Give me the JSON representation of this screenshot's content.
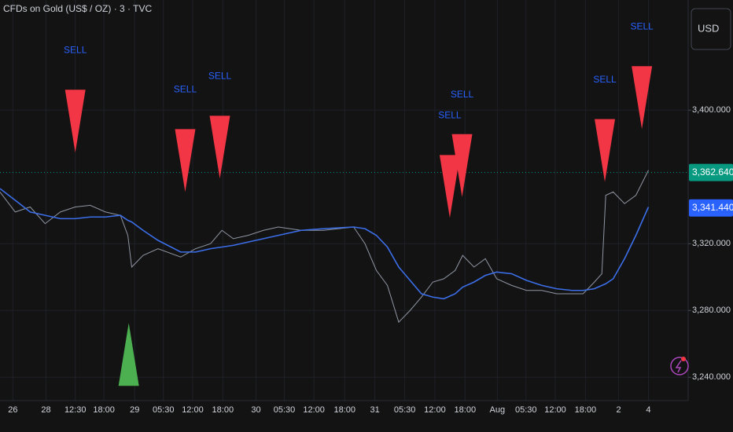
{
  "chart_data": {
    "type": "line",
    "title": "CFDs on Gold (US$ / OZ) · 3 · TVC",
    "currency": "USD",
    "x": [
      -0.43,
      0.08,
      0.58,
      1.08,
      1.59,
      2.09,
      2.59,
      3.1,
      3.6,
      3.85,
      3.98,
      4.36,
      4.86,
      5.62,
      6.12,
      6.62,
      7.0,
      7.38,
      7.88,
      8.39,
      8.89,
      9.65,
      10.4,
      11.41,
      11.79,
      12.17,
      12.54,
      12.92,
      13.3,
      13.68,
      14.06,
      14.43,
      14.81,
      15.06,
      15.44,
      15.82,
      16.2,
      16.7,
      17.2,
      17.71,
      18.21,
      18.72,
      19.09,
      19.47,
      19.72,
      19.85,
      20.1,
      20.48,
      20.86,
      21.28
    ],
    "series": [
      {
        "color": "#8f96a3",
        "values": [
          3351,
          3339,
          3342,
          3332,
          3339,
          3342,
          3343,
          3339,
          3337,
          3325,
          3306,
          3313,
          3317,
          3312,
          3317,
          3320,
          3328,
          3323,
          3325,
          3328,
          3330,
          3328,
          3328,
          3330,
          3320,
          3304,
          3295,
          3273,
          3280,
          3288,
          3297,
          3299,
          3304,
          3313,
          3306,
          3311,
          3299,
          3295,
          3292,
          3292,
          3290,
          3290,
          3290,
          3297,
          3302,
          3349,
          3351,
          3344,
          3349,
          3364
        ]
      },
      {
        "color": "#3b6ee8",
        "values": [
          3353,
          3346,
          3339,
          3337,
          3335,
          3335,
          3336,
          3336,
          3337,
          3334,
          3333,
          3328,
          3322,
          3315,
          3315,
          3317,
          3318,
          3319,
          3321,
          3323,
          3325,
          3328,
          3329,
          3330,
          3329,
          3325,
          3318,
          3306,
          3298,
          3290,
          3288,
          3287,
          3290,
          3294,
          3297,
          3301,
          3303,
          3302,
          3298,
          3295,
          3293,
          3292,
          3292,
          3293,
          3295,
          3296,
          3299,
          3311,
          3325,
          3342
        ]
      }
    ],
    "xlim": [
      -0.43,
      22.61
    ],
    "xticks": [
      {
        "value": 0,
        "label": "26"
      },
      {
        "value": 1.11,
        "label": "28"
      },
      {
        "value": 2.09,
        "label": "12:30"
      },
      {
        "value": 3.05,
        "label": "18:00"
      },
      {
        "value": 4.08,
        "label": "29"
      },
      {
        "value": 5.04,
        "label": "05:30"
      },
      {
        "value": 6.02,
        "label": "12:00"
      },
      {
        "value": 7.03,
        "label": "18:00"
      },
      {
        "value": 8.14,
        "label": "30"
      },
      {
        "value": 9.09,
        "label": "05:30"
      },
      {
        "value": 10.08,
        "label": "12:00"
      },
      {
        "value": 11.11,
        "label": "18:00"
      },
      {
        "value": 12.12,
        "label": "31"
      },
      {
        "value": 13.12,
        "label": "05:30"
      },
      {
        "value": 14.13,
        "label": "12:00"
      },
      {
        "value": 15.14,
        "label": "18:00"
      },
      {
        "value": 16.22,
        "label": "Aug"
      },
      {
        "value": 17.18,
        "label": "05:30"
      },
      {
        "value": 18.16,
        "label": "12:00"
      },
      {
        "value": 19.17,
        "label": "18:00"
      },
      {
        "value": 20.28,
        "label": "2"
      },
      {
        "value": 21.28,
        "label": "4"
      }
    ],
    "ylim": [
      3226,
      3466
    ],
    "yticks": [
      {
        "value": 3240,
        "label": "3,240.000"
      },
      {
        "value": 3280,
        "label": "3,280.000"
      },
      {
        "value": 3320,
        "label": "3,320.000"
      },
      {
        "value": 3400,
        "label": "3,400.000"
      }
    ],
    "grid": true,
    "price_labels": [
      {
        "value": 3362.64,
        "label": "3,362.640",
        "color": "#089981"
      },
      {
        "value": 3341.44,
        "label": "3,341.440",
        "color": "#2962ff"
      }
    ],
    "sell_signals": {
      "text": "SELL",
      "color": "#f23645",
      "x": [
        2.09,
        5.77,
        6.93,
        14.63,
        15.04,
        19.82,
        21.06
      ],
      "y": [
        3374.6,
        3351,
        3359,
        3335.5,
        3348,
        3357,
        3388.7
      ]
    },
    "buy_signals": {
      "color": "#4caf50",
      "x": [
        3.88
      ],
      "y": [
        3272.5
      ]
    }
  }
}
